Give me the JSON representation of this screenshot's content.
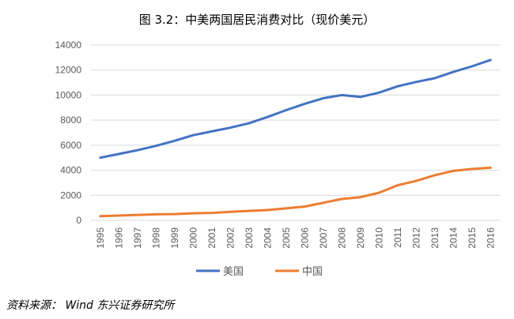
{
  "title": "图 3.2：中美两国居民消费对比（现价美元）",
  "source": "资料来源：  Wind  东兴证券研究所",
  "colors": {
    "usa": "#4472C4",
    "china": "#ED7D31",
    "grid": "#D9D9D9",
    "axis_text": "#595959"
  },
  "chart_data": {
    "type": "line",
    "title": "图 3.2：中美两国居民消费对比（现价美元）",
    "xlabel": "",
    "ylabel": "",
    "ylim": [
      0,
      14000
    ],
    "yticks": [
      "0",
      "2000",
      "4000",
      "6000",
      "8000",
      "10000",
      "12000",
      "14000"
    ],
    "categories": [
      "1995",
      "1996",
      "1997",
      "1998",
      "1999",
      "2000",
      "2001",
      "2002",
      "2003",
      "2004",
      "2005",
      "2006",
      "2007",
      "2008",
      "2009",
      "2010",
      "2011",
      "2012",
      "2013",
      "2014",
      "2015",
      "2016"
    ],
    "series": [
      {
        "name": "美国",
        "color": "#4472C4",
        "values": [
          5000,
          5300,
          5600,
          5950,
          6350,
          6800,
          7100,
          7400,
          7750,
          8250,
          8800,
          9300,
          9750,
          10000,
          9850,
          10200,
          10700,
          11050,
          11350,
          11850,
          12300,
          12800
        ]
      },
      {
        "name": "中国",
        "color": "#ED7D31",
        "values": [
          330,
          380,
          430,
          480,
          500,
          560,
          590,
          680,
          750,
          820,
          950,
          1100,
          1400,
          1700,
          1850,
          2200,
          2800,
          3150,
          3600,
          3950,
          4100,
          4200
        ]
      }
    ],
    "legend_position": "bottom"
  }
}
